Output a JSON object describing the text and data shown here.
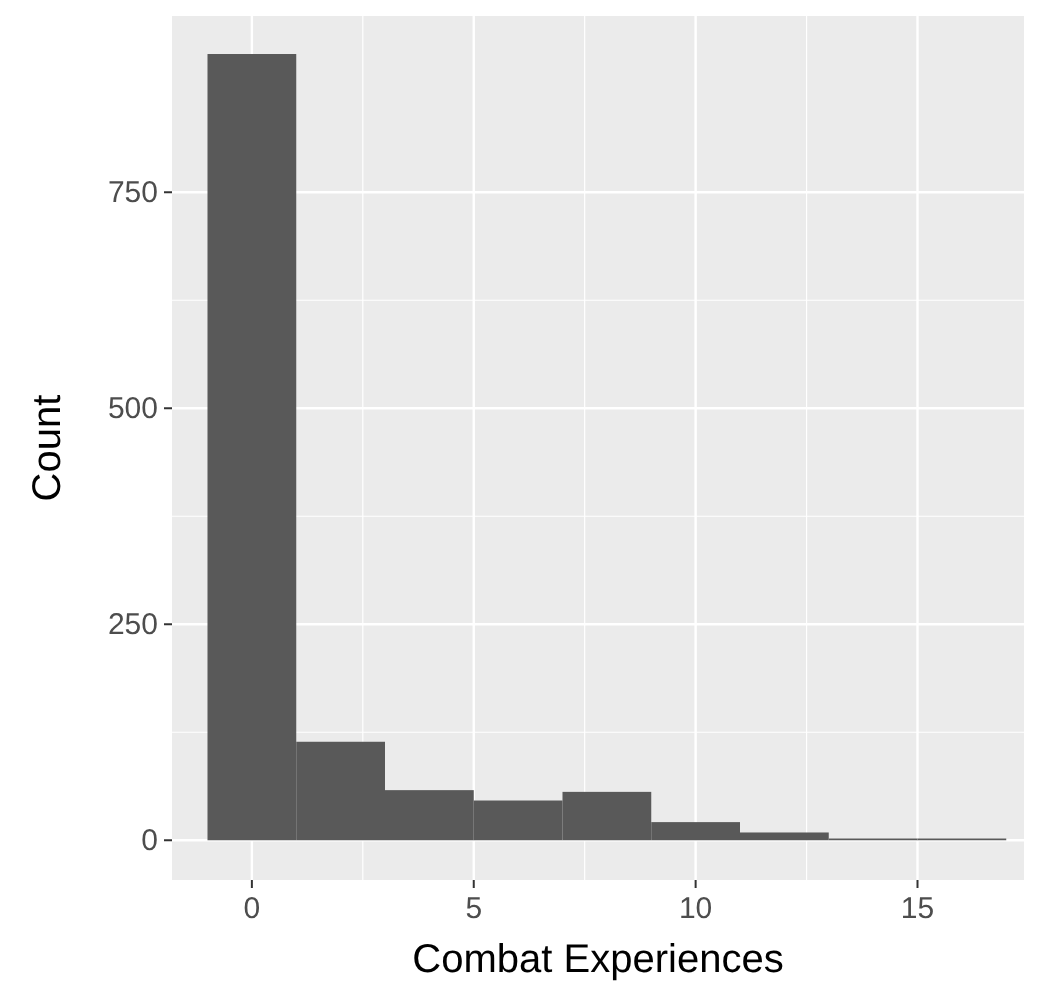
{
  "chart_data": {
    "type": "histogram",
    "xlabel": "Combat Experiences",
    "ylabel": "Count",
    "bins": [
      -1,
      1,
      3,
      5,
      7,
      9,
      11,
      13,
      15,
      17
    ],
    "values": [
      910,
      114,
      58,
      46,
      56,
      21,
      9,
      2,
      2
    ],
    "color": "#595959",
    "xlim": [
      -1.8,
      17.4
    ],
    "xticks": [
      0,
      5,
      10,
      15
    ],
    "ylim": [
      -46,
      954
    ],
    "yticks": [
      0,
      250,
      500,
      750
    ],
    "grid": true
  }
}
